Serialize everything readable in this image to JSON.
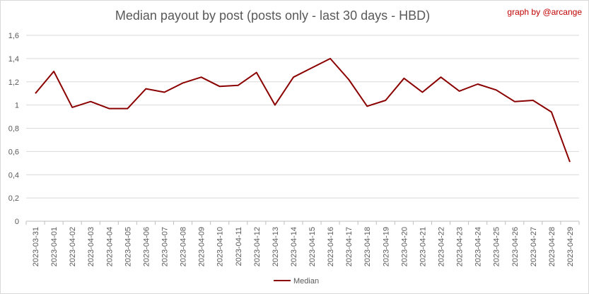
{
  "chart_data": {
    "type": "line",
    "title": "Median payout by post (posts only - last 30 days - HBD)",
    "credit": "graph by @arcange",
    "xlabel": "",
    "ylabel": "",
    "ylim": [
      0,
      1.6
    ],
    "y_ticks": [
      "0",
      "0,2",
      "0,4",
      "0,6",
      "0,8",
      "1",
      "1,2",
      "1,4",
      "1,6"
    ],
    "y_tick_values": [
      0,
      0.2,
      0.4,
      0.6,
      0.8,
      1.0,
      1.2,
      1.4,
      1.6
    ],
    "grid": true,
    "legend_position": "bottom",
    "colors": {
      "series": "#8b0000",
      "grid": "#d9d9d9",
      "axis": "#bfbfbf"
    },
    "categories": [
      "2023-03-31",
      "2023-04-01",
      "2023-04-02",
      "2023-04-03",
      "2023-04-04",
      "2023-04-05",
      "2023-04-06",
      "2023-04-07",
      "2023-04-08",
      "2023-04-09",
      "2023-04-10",
      "2023-04-11",
      "2023-04-12",
      "2023-04-13",
      "2023-04-14",
      "2023-04-15",
      "2023-04-16",
      "2023-04-17",
      "2023-04-18",
      "2023-04-19",
      "2023-04-20",
      "2023-04-21",
      "2023-04-22",
      "2023-04-23",
      "2023-04-24",
      "2023-04-25",
      "2023-04-26",
      "2023-04-27",
      "2023-04-28",
      "2023-04-29"
    ],
    "series": [
      {
        "name": "Median",
        "values": [
          1.1,
          1.29,
          0.98,
          1.03,
          0.97,
          0.97,
          1.14,
          1.11,
          1.19,
          1.24,
          1.16,
          1.17,
          1.28,
          1.0,
          1.24,
          1.32,
          1.4,
          1.22,
          0.99,
          1.04,
          1.23,
          1.11,
          1.24,
          1.12,
          1.18,
          1.13,
          1.03,
          1.04,
          0.94,
          0.51
        ]
      }
    ]
  }
}
